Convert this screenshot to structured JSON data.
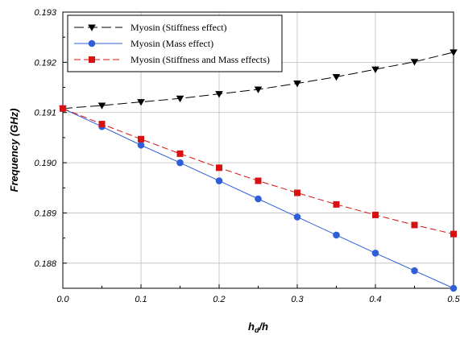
{
  "chart_data": {
    "type": "line",
    "title": "",
    "xlabel_main": "h",
    "xlabel_sub": "d",
    "xlabel_tail": "/h",
    "ylabel": "Frequency (GHz)",
    "xlim": [
      0.0,
      0.5
    ],
    "ylim": [
      0.1875,
      0.193
    ],
    "xticks": [
      "0.0",
      "0.1",
      "0.2",
      "0.3",
      "0.4",
      "0.5"
    ],
    "yticks": [
      "0.188",
      "0.189",
      "0.190",
      "0.191",
      "0.192",
      "0.193"
    ],
    "grid": true,
    "legend_position": "top-left",
    "x": [
      0.0,
      0.05,
      0.1,
      0.15,
      0.2,
      0.25,
      0.3,
      0.35,
      0.4,
      0.45,
      0.5
    ],
    "series": [
      {
        "name": "Myosin (Stiffness effect)",
        "color": "#000000",
        "marker": "triangle-down",
        "dash": "long-dash",
        "values": [
          0.19108,
          0.19114,
          0.19121,
          0.19128,
          0.19137,
          0.19146,
          0.19158,
          0.19171,
          0.19186,
          0.19201,
          0.1922
        ]
      },
      {
        "name": "Myosin (Mass effect)",
        "color": "#2f5fd8",
        "marker": "circle",
        "dash": "solid",
        "values": [
          0.19108,
          0.19072,
          0.19035,
          0.19,
          0.18964,
          0.18928,
          0.18892,
          0.18856,
          0.1882,
          0.18785,
          0.1875
        ]
      },
      {
        "name": "Myosin (Stiffness and Mass effects)",
        "color": "#d81010",
        "marker": "square",
        "dash": "dash",
        "values": [
          0.19108,
          0.19077,
          0.19047,
          0.19018,
          0.1899,
          0.18964,
          0.1894,
          0.18917,
          0.18896,
          0.18876,
          0.18858
        ]
      }
    ]
  }
}
